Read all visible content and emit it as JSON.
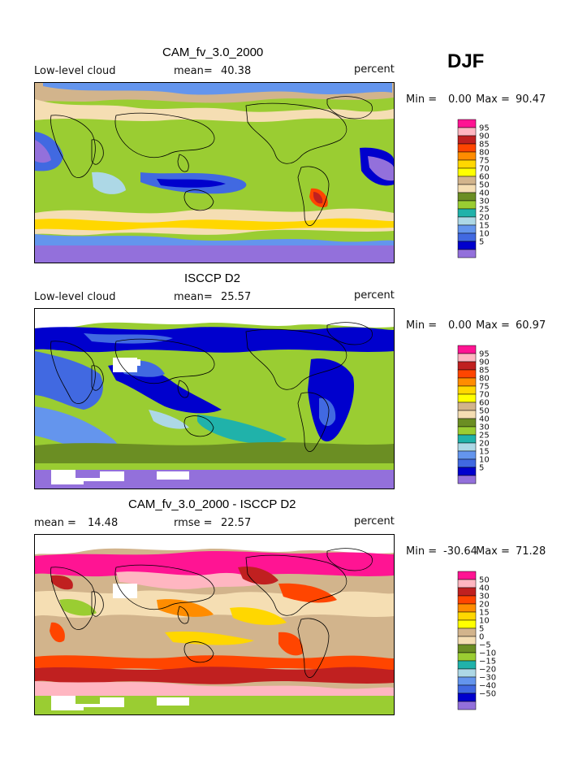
{
  "season": "DJF",
  "panels": [
    {
      "title": "CAM_fv_3.0_2000",
      "left_label": "Low-level cloud",
      "mean_label": "mean=",
      "mean_value": "40.38",
      "units": "percent",
      "min_label": "Min =",
      "min_value": "0.00",
      "max_label": "Max =",
      "max_value": "90.47",
      "colorbar": {
        "labels": [
          "95",
          "90",
          "85",
          "80",
          "75",
          "70",
          "60",
          "50",
          "40",
          "30",
          "25",
          "20",
          "15",
          "10",
          "5"
        ],
        "colors": [
          "#ff1493",
          "#ffb6c1",
          "#c02020",
          "#ff4500",
          "#ff8c00",
          "#ffd700",
          "#ffff00",
          "#d2b48c",
          "#f5deb3",
          "#6b8e23",
          "#9acd32",
          "#20b2aa",
          "#add8e6",
          "#6495ed",
          "#4169e1",
          "#0000cd",
          "#9370db"
        ]
      }
    },
    {
      "title": "ISCCP D2",
      "left_label": "Low-level cloud",
      "mean_label": "mean=",
      "mean_value": "25.57",
      "units": "percent",
      "min_label": "Min =",
      "min_value": "0.00",
      "max_label": "Max =",
      "max_value": "60.97",
      "colorbar": {
        "labels": [
          "95",
          "90",
          "85",
          "80",
          "75",
          "70",
          "60",
          "50",
          "40",
          "30",
          "25",
          "20",
          "15",
          "10",
          "5"
        ],
        "colors": [
          "#ff1493",
          "#ffb6c1",
          "#c02020",
          "#ff4500",
          "#ff8c00",
          "#ffd700",
          "#ffff00",
          "#d2b48c",
          "#f5deb3",
          "#6b8e23",
          "#9acd32",
          "#20b2aa",
          "#add8e6",
          "#6495ed",
          "#4169e1",
          "#0000cd",
          "#9370db"
        ]
      }
    },
    {
      "title": "CAM_fv_3.0_2000 - ISCCP D2",
      "left_label": "mean =",
      "mean_label": "14.48",
      "mean_value": "",
      "rmse_label": "rmse =",
      "rmse_value": "22.57",
      "units": "percent",
      "min_label": "Min =",
      "min_value": "-30.64",
      "max_label": "Max =",
      "max_value": "71.28",
      "colorbar": {
        "labels": [
          "50",
          "40",
          "30",
          "20",
          "15",
          "10",
          "5",
          "0",
          "−5",
          "−10",
          "−15",
          "−20",
          "−30",
          "−40",
          "−50"
        ],
        "colors": [
          "#ff1493",
          "#ffb6c1",
          "#c02020",
          "#ff4500",
          "#ff8c00",
          "#ffd700",
          "#ffff00",
          "#d2b48c",
          "#f5deb3",
          "#6b8e23",
          "#9acd32",
          "#20b2aa",
          "#add8e6",
          "#6495ed",
          "#4169e1",
          "#0000cd",
          "#9370db"
        ]
      }
    }
  ],
  "chart_data": [
    {
      "type": "heatmap",
      "title": "CAM_fv_3.0_2000",
      "variable": "Low-level cloud",
      "units": "percent",
      "mean": 40.38,
      "min": 0.0,
      "max": 90.47,
      "contour_levels": [
        5,
        10,
        15,
        20,
        25,
        30,
        40,
        50,
        60,
        70,
        75,
        80,
        85,
        90,
        95
      ]
    },
    {
      "type": "heatmap",
      "title": "ISCCP D2",
      "variable": "Low-level cloud",
      "units": "percent",
      "mean": 25.57,
      "min": 0.0,
      "max": 60.97,
      "contour_levels": [
        5,
        10,
        15,
        20,
        25,
        30,
        40,
        50,
        60,
        70,
        75,
        80,
        85,
        90,
        95
      ]
    },
    {
      "type": "heatmap",
      "title": "CAM_fv_3.0_2000 - ISCCP D2",
      "units": "percent",
      "mean": 14.48,
      "rmse": 22.57,
      "min": -30.64,
      "max": 71.28,
      "contour_levels": [
        -50,
        -40,
        -30,
        -20,
        -15,
        -10,
        -5,
        0,
        5,
        10,
        15,
        20,
        30,
        40,
        50
      ]
    }
  ]
}
